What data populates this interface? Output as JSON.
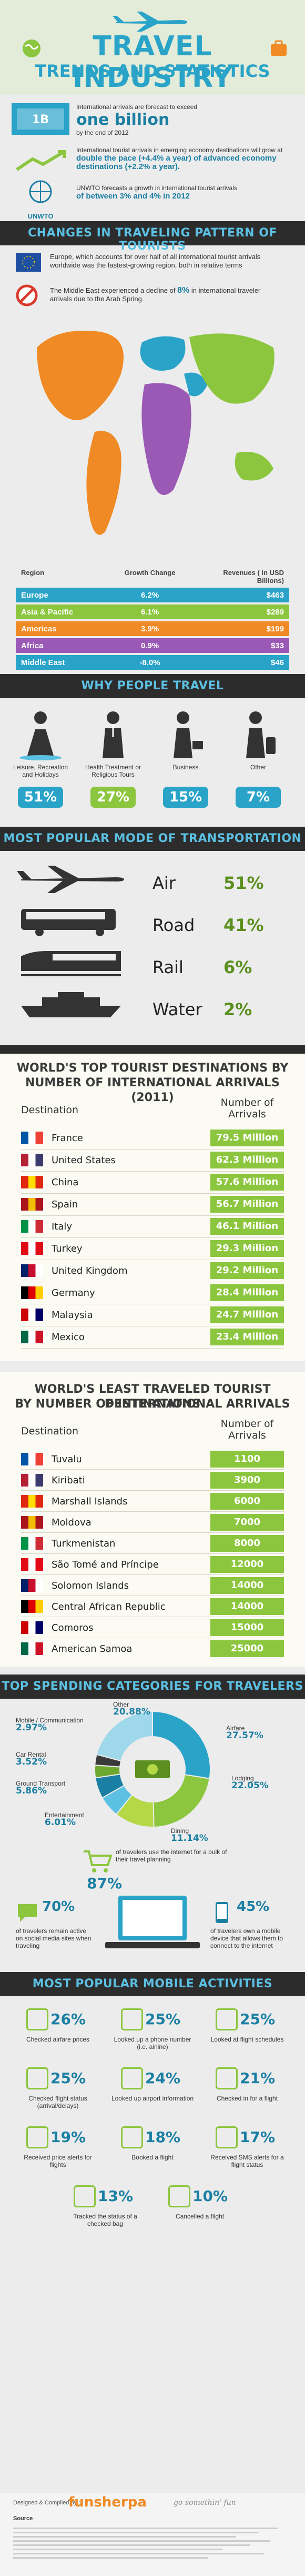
{
  "header": {
    "title_line1": "TRAVEL INDUSTRY",
    "title_line2": "TRENDS AND STATISTICS"
  },
  "intro": {
    "stat1_prefix": "International arrivals are forecast to exceed",
    "stat1_big": "one billion",
    "stat1_suffix": "by the end of 2012",
    "stat2_text": "International tourist arrivals in emerging economy destinations will grow at",
    "stat2_highlight": "double the pace (+4.4% a year) of advanced economy destinations (+2.2% a year).",
    "stat3_text": "UNWTO forecasts a growth in international tourist arrivals",
    "stat3_highlight": "of between 3% and 4% in 2012",
    "unwto_label": "UNWTO"
  },
  "pattern": {
    "section_title": "CHANGES IN TRAVELING PATTERN OF TOURISTS",
    "europe_text": "Europe, which accounts for over half of all international tourist arrivals worldwide was the fastest-growing region, both in relative terms",
    "me_text_prefix": "The Middle East experienced a decline of",
    "me_highlight": "8%",
    "me_text_suffix": "in international traveler arrivals due to the Arab Spring.",
    "col_region": "Region",
    "col_growth": "Growth Change",
    "col_revenue": "Revenues ( in USD Billions)",
    "rows": [
      {
        "region": "Europe",
        "growth": "6.2%",
        "revenue": "$463",
        "color": "#2aa3c8"
      },
      {
        "region": "Asia & Pacific",
        "growth": "6.1%",
        "revenue": "$289",
        "color": "#8cc63e"
      },
      {
        "region": "Americas",
        "growth": "3.9%",
        "revenue": "$199",
        "color": "#f08a24"
      },
      {
        "region": "Africa",
        "growth": "0.9%",
        "revenue": "$33",
        "color": "#9b59b6"
      },
      {
        "region": "Middle East",
        "growth": "-8.0%",
        "revenue": "$46",
        "color": "#2aa3c8"
      }
    ]
  },
  "why": {
    "section_title": "WHY PEOPLE TRAVEL",
    "items": [
      {
        "label": "Leisure, Recreation and Holidays",
        "pct": "51%",
        "color": "#2aa3c8"
      },
      {
        "label": "Health Treatment or Religious Tours",
        "pct": "27%",
        "color": "#8cc63e"
      },
      {
        "label": "Business",
        "pct": "15%",
        "color": "#2aa3c8"
      },
      {
        "label": "Other",
        "pct": "7%",
        "color": "#2aa3c8"
      }
    ]
  },
  "transport": {
    "section_title": "MOST POPULAR MODE OF TRANSPORTATION",
    "items": [
      {
        "mode": "Air",
        "pct": "51%",
        "icon": "airplane-icon"
      },
      {
        "mode": "Road",
        "pct": "41%",
        "icon": "bus-icon"
      },
      {
        "mode": "Rail",
        "pct": "6%",
        "icon": "train-icon"
      },
      {
        "mode": "Water",
        "pct": "2%",
        "icon": "ship-icon"
      }
    ]
  },
  "top_dest": {
    "title_line1": "WORLD'S TOP TOURIST DESTINATIONS BY",
    "title_line2": "NUMBER OF INTERNATIONAL ARRIVALS (2011)",
    "col_destination": "Destination",
    "col_arrivals": "Number of Arrivals",
    "rows": [
      {
        "country": "France",
        "value": "79.5 Million"
      },
      {
        "country": "United States",
        "value": "62.3 Million"
      },
      {
        "country": "China",
        "value": "57.6 Million"
      },
      {
        "country": "Spain",
        "value": "56.7 Million"
      },
      {
        "country": "Italy",
        "value": "46.1 Million"
      },
      {
        "country": "Turkey",
        "value": "29.3 Million"
      },
      {
        "country": "United Kingdom",
        "value": "29.2 Million"
      },
      {
        "country": "Germany",
        "value": "28.4 Million"
      },
      {
        "country": "Malaysia",
        "value": "24.7 Million"
      },
      {
        "country": "Mexico",
        "value": "23.4 Million"
      }
    ]
  },
  "least_dest": {
    "title_line1": "WORLD'S LEAST TRAVELED TOURIST DESTINATIONS",
    "title_line2": "BY NUMBER OF INTERNATIONAL ARRIVALS",
    "col_destination": "Destination",
    "col_arrivals": "Number of Arrivals",
    "rows": [
      {
        "country": "Tuvalu",
        "value": "1100"
      },
      {
        "country": "Kiribati",
        "value": "3900"
      },
      {
        "country": "Marshall Islands",
        "value": "6000"
      },
      {
        "country": "Moldova",
        "value": "7000"
      },
      {
        "country": "Turkmenistan",
        "value": "8000"
      },
      {
        "country": "São Tomé and Príncipe",
        "value": "12000"
      },
      {
        "country": "Solomon Islands",
        "value": "14000"
      },
      {
        "country": "Central African Republic",
        "value": "14000"
      },
      {
        "country": "Comoros",
        "value": "15000"
      },
      {
        "country": "American Samoa",
        "value": "25000"
      }
    ]
  },
  "spending": {
    "section_title": "TOP SPENDING CATEGORIES FOR TRAVELERS",
    "categories": [
      {
        "name": "Airfare",
        "pct": "27.57%",
        "value": 27.57,
        "color": "#2aa3c8"
      },
      {
        "name": "Lodging",
        "pct": "22.05%",
        "value": 22.05,
        "color": "#8cc63e"
      },
      {
        "name": "Dining",
        "pct": "11.14%",
        "value": 11.14,
        "color": "#b5d847"
      },
      {
        "name": "Entertainment",
        "pct": "6.01%",
        "value": 6.01,
        "color": "#5cc0e2"
      },
      {
        "name": "Ground Transport",
        "pct": "5.86%",
        "value": 5.86,
        "color": "#1b7fa3"
      },
      {
        "name": "Car Rental",
        "pct": "3.52%",
        "value": 3.52,
        "color": "#6fa82f"
      },
      {
        "name": "Mobile / Communication",
        "pct": "2.97%",
        "value": 2.97,
        "color": "#3a3a3a"
      },
      {
        "name": "Other",
        "pct": "20.88%",
        "value": 20.88,
        "color": "#9fd8ea"
      }
    ]
  },
  "internet": {
    "stat1_pct": "87%",
    "stat1_text": "of travelers use the internet for a bulk of their travel planning",
    "stat2_pct": "70%",
    "stat2_text": "of travelers remain active on social media sites when traveling",
    "stat3_pct": "45%",
    "stat3_text": "of travelers own a mobile device that allows them to connect to the internet"
  },
  "mobile": {
    "section_title": "MOST POPULAR MOBILE ACTIVITIES",
    "items": [
      {
        "pct": "26%",
        "label": "Checked airfare prices"
      },
      {
        "pct": "25%",
        "label": "Looked up a phone number (i.e. airline)"
      },
      {
        "pct": "25%",
        "label": "Looked at flight schedules"
      },
      {
        "pct": "25%",
        "label": "Checked flight status (arrival/delays)"
      },
      {
        "pct": "24%",
        "label": "Looked up airport information"
      },
      {
        "pct": "21%",
        "label": "Checked in for a flight"
      },
      {
        "pct": "19%",
        "label": "Received price alerts for flights"
      },
      {
        "pct": "18%",
        "label": "Booked a flight"
      },
      {
        "pct": "17%",
        "label": "Received SMS alerts for a flight status"
      },
      {
        "pct": "13%",
        "label": "Tracked the status of a checked bag"
      },
      {
        "pct": "10%",
        "label": "Cancelled a flight"
      }
    ]
  },
  "footer": {
    "designed_by": "Designed & Compiled by :-",
    "brand": "funsherpa",
    "tagline": "go somethin' fun",
    "source_label": "Source"
  }
}
